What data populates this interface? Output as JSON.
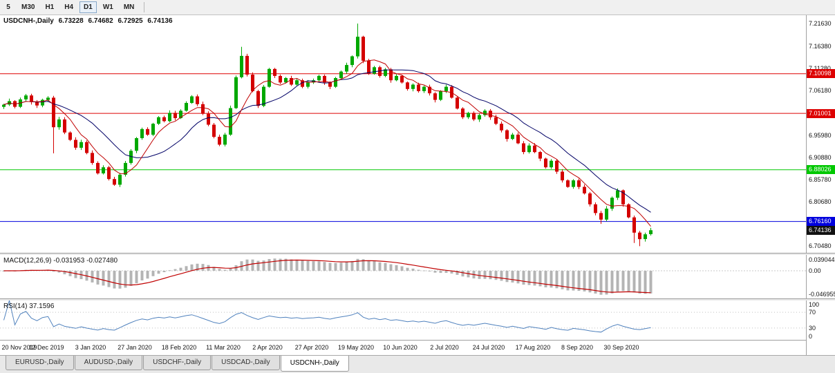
{
  "toolbar": {
    "timeframes": [
      {
        "label": "5",
        "active": false
      },
      {
        "label": "M30",
        "active": false
      },
      {
        "label": "H1",
        "active": false
      },
      {
        "label": "H4",
        "active": false
      },
      {
        "label": "D1",
        "active": true
      },
      {
        "label": "W1",
        "active": false
      },
      {
        "label": "MN",
        "active": false
      }
    ]
  },
  "main_legend": {
    "symbol": "USDCNH-,Daily",
    "open": "6.73228",
    "high": "6.74682",
    "low": "6.72925",
    "close": "6.74136"
  },
  "view": {
    "price_top": 7.2355,
    "price_bottom": 6.6895,
    "candle_spacing": 8.0,
    "candle_width": 5,
    "colors": {
      "up": "#00a800",
      "down": "#d40000",
      "ma_fast": "#c00000",
      "ma_slow": "#000066",
      "macd_bar": "#b4b4b4",
      "macd_signal": "#c00000",
      "rsi": "#4f81bd"
    }
  },
  "chart_data": {
    "type": "candlestick",
    "title": "USDCNH-,Daily",
    "time_labels": [
      "20 Nov 2019",
      "12 Dec 2019",
      "3 Jan 2020",
      "27 Jan 2020",
      "18 Feb 2020",
      "11 Mar 2020",
      "2 Apr 2020",
      "27 Apr 2020",
      "19 May 2020",
      "10 Jun 2020",
      "2 Jul 2020",
      "24 Jul 2020",
      "17 Aug 2020",
      "8 Sep 2020",
      "30 Sep 2020"
    ],
    "first_open": 7.025,
    "closes": [
      7.03,
      7.038,
      7.025,
      7.042,
      7.051,
      7.036,
      7.028,
      7.041,
      7.046,
      6.978,
      6.996,
      6.966,
      6.949,
      6.931,
      6.944,
      6.919,
      6.896,
      6.872,
      6.886,
      6.859,
      6.846,
      6.869,
      6.896,
      6.924,
      6.953,
      6.974,
      6.961,
      6.986,
      7.001,
      6.992,
      7.011,
      6.999,
      7.016,
      7.034,
      7.049,
      7.031,
      7.009,
      6.984,
      6.956,
      6.938,
      6.961,
      7.022,
      7.093,
      7.142,
      7.099,
      7.061,
      7.027,
      7.071,
      7.112,
      7.096,
      7.081,
      7.091,
      7.076,
      7.086,
      7.071,
      7.081,
      7.086,
      7.096,
      7.081,
      7.071,
      7.091,
      7.106,
      7.121,
      7.141,
      7.186,
      7.131,
      7.101,
      7.116,
      7.096,
      7.111,
      7.086,
      7.096,
      7.081,
      7.066,
      7.076,
      7.061,
      7.071,
      7.056,
      7.041,
      7.061,
      7.071,
      7.046,
      7.021,
      7.001,
      7.011,
      6.996,
      7.006,
      7.016,
      7.001,
      6.986,
      6.971,
      6.951,
      6.961,
      6.941,
      6.921,
      6.936,
      6.921,
      6.906,
      6.886,
      6.901,
      6.876,
      6.856,
      6.841,
      6.856,
      6.841,
      6.826,
      6.801,
      6.781,
      6.766,
      6.791,
      6.816,
      6.833,
      6.801,
      6.771,
      6.736,
      6.721,
      6.732,
      6.741
    ],
    "wick_overrides": {
      "9": {
        "low": 6.918
      },
      "43": {
        "high": 7.163
      },
      "64": {
        "high": 7.2163
      },
      "108": {
        "low": 6.756
      },
      "114": {
        "low": 6.712
      },
      "115": {
        "low": 6.7048
      }
    },
    "last_candle": {
      "open": 6.73228,
      "high": 6.74682,
      "low": 6.72925,
      "close": 6.74136
    },
    "price_ticks": [
      "7.21630",
      "7.16380",
      "7.11280",
      "7.06180",
      "7.01080",
      "6.95980",
      "6.90880",
      "6.85780",
      "6.80680",
      "6.75580",
      "6.70480"
    ],
    "hlines": [
      {
        "value": 7.10098,
        "label": "7.10098",
        "color": "#dd0000"
      },
      {
        "value": 7.01001,
        "label": "7.01001",
        "color": "#dd0000"
      },
      {
        "value": 6.88026,
        "label": "6.88026",
        "color": "#00c800"
      },
      {
        "value": 6.7616,
        "label": "6.76160",
        "color": "#0000dd"
      }
    ],
    "current_price": {
      "value": 6.74136,
      "label": "6.74136",
      "color": "#111111"
    },
    "macd": {
      "legend": "MACD(12,26,9) -0.031953 -0.027480",
      "params": [
        12,
        26,
        9
      ],
      "axis": [
        "0.039044",
        "0.00",
        "-0.046955"
      ]
    },
    "rsi": {
      "legend": "RSI(14) 37.1596",
      "period": 14,
      "value": 37.1596,
      "axis": [
        "100",
        "70",
        "30",
        "0"
      ],
      "levels": [
        70,
        30
      ]
    }
  },
  "tabs": [
    {
      "label": "EURUSD-,Daily",
      "active": false
    },
    {
      "label": "AUDUSD-,Daily",
      "active": false
    },
    {
      "label": "USDCHF-,Daily",
      "active": false
    },
    {
      "label": "USDCAD-,Daily",
      "active": false
    },
    {
      "label": "USDCNH-,Daily",
      "active": true
    }
  ]
}
